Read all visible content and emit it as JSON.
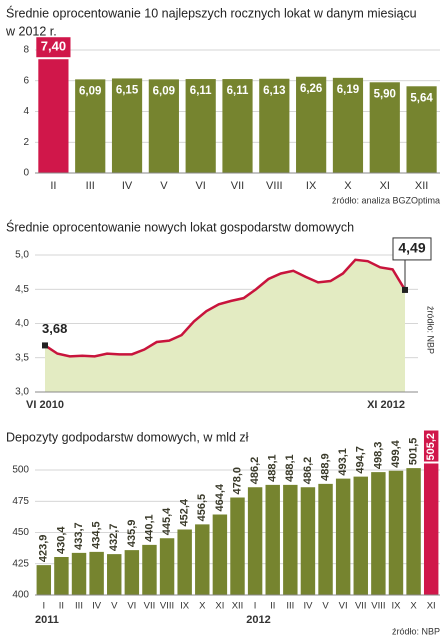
{
  "chart_data": [
    {
      "type": "bar",
      "title": "Średnie oprocentowanie 10 najlepszych rocznych lokat w danym miesiącu",
      "subtitle": "w 2012 r.",
      "categories": [
        "II",
        "III",
        "IV",
        "V",
        "VI",
        "VII",
        "VIII",
        "IX",
        "X",
        "XI",
        "XII"
      ],
      "values": [
        7.4,
        6.09,
        6.15,
        6.09,
        6.11,
        6.11,
        6.13,
        6.26,
        6.19,
        5.9,
        5.64
      ],
      "value_labels": [
        "7,40",
        "6,09",
        "6,15",
        "6,09",
        "6,11",
        "6,11",
        "6,13",
        "6,26",
        "6,19",
        "5,90",
        "5,64"
      ],
      "colors": [
        "#d0174a",
        "#76842f",
        "#76842f",
        "#76842f",
        "#76842f",
        "#76842f",
        "#76842f",
        "#76842f",
        "#76842f",
        "#76842f",
        "#76842f"
      ],
      "ylim": [
        0,
        8
      ],
      "yticks": [
        0,
        2,
        4,
        6,
        8
      ],
      "grid": true,
      "source": "źródło: analiza BGZOptima"
    },
    {
      "type": "line",
      "title": "Średnie oprocentowanie nowych lokat gospodarstw domowych",
      "categories": [
        "VI 2010",
        null,
        null,
        null,
        null,
        null,
        null,
        null,
        null,
        null,
        null,
        null,
        null,
        null,
        null,
        null,
        null,
        null,
        null,
        null,
        null,
        null,
        null,
        null,
        null,
        null,
        null,
        null,
        null,
        "XI 2012"
      ],
      "values": [
        3.68,
        3.56,
        3.52,
        3.53,
        3.52,
        3.56,
        3.55,
        3.55,
        3.62,
        3.73,
        3.75,
        3.83,
        4.03,
        4.18,
        4.28,
        4.33,
        4.37,
        4.5,
        4.65,
        4.73,
        4.77,
        4.68,
        4.6,
        4.62,
        4.73,
        4.93,
        4.91,
        4.82,
        4.79,
        4.49
      ],
      "value_labels": [
        "3,68",
        null,
        null,
        null,
        null,
        null,
        null,
        null,
        null,
        null,
        null,
        null,
        null,
        null,
        null,
        null,
        null,
        null,
        null,
        null,
        null,
        null,
        null,
        null,
        null,
        null,
        null,
        null,
        null,
        "4,49"
      ],
      "color": "#c8143c",
      "area_color": "#e3ebc2",
      "ylim": [
        3.0,
        5.0
      ],
      "yticks": [
        {
          "value": 3.0,
          "label": "3,0"
        },
        {
          "value": 3.5,
          "label": "3,5"
        },
        {
          "value": 4.0,
          "label": "4,0"
        },
        {
          "value": 4.5,
          "label": "4,5"
        },
        {
          "value": 5.0,
          "label": "5,0"
        }
      ],
      "grid": true,
      "source": "źródło: NBP"
    },
    {
      "type": "bar",
      "title": "Depozyty godpodarstw domowych, w mld zł",
      "categories": [
        "I",
        "II",
        "III",
        "IV",
        "V",
        "VI",
        "VII",
        "VIII",
        "IX",
        "X",
        "XI",
        "XII",
        "I",
        "II",
        "III",
        "IV",
        "V",
        "VI",
        "VII",
        "VIII",
        "IX",
        "X",
        "XI"
      ],
      "years": [
        "2011",
        "2012"
      ],
      "values": [
        423.9,
        430.4,
        433.7,
        434.5,
        432.7,
        435.9,
        440.1,
        445.4,
        452.4,
        456.5,
        464.4,
        478.0,
        486.2,
        488.1,
        488.1,
        486.2,
        488.9,
        493.1,
        494.7,
        498.3,
        499.4,
        501.5,
        505.2
      ],
      "value_labels": [
        "423,9",
        "430,4",
        "433,7",
        "434,5",
        "432,7",
        "435,9",
        "440,1",
        "445,4",
        "452,4",
        "456,5",
        "464,4",
        "478,0",
        "486,2",
        "488,1",
        "488,1",
        "486,2",
        "488,9",
        "493,1",
        "494,7",
        "498,3",
        "499,4",
        "501,5",
        "505,2"
      ],
      "colors": [
        "#76842f",
        "#76842f",
        "#76842f",
        "#76842f",
        "#76842f",
        "#76842f",
        "#76842f",
        "#76842f",
        "#76842f",
        "#76842f",
        "#76842f",
        "#76842f",
        "#76842f",
        "#76842f",
        "#76842f",
        "#76842f",
        "#76842f",
        "#76842f",
        "#76842f",
        "#76842f",
        "#76842f",
        "#76842f",
        "#d0174a"
      ],
      "ylim": [
        400,
        512
      ],
      "yticks": [
        400,
        425,
        450,
        475,
        500
      ],
      "grid": true,
      "source": "źródło: NBP"
    }
  ]
}
